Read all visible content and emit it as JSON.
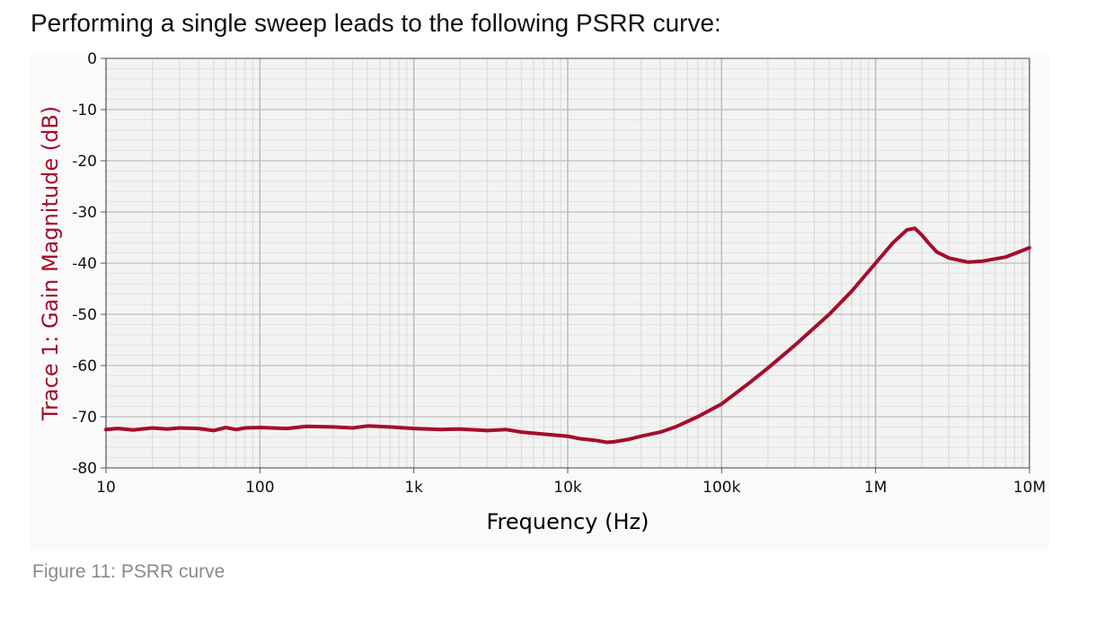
{
  "intro_text": "Performing a single sweep leads to the following PSRR curve:",
  "caption": "Figure 11: PSRR curve",
  "colors": {
    "trace": "#a50d2b",
    "plot_bg": "#f3f3f3",
    "grid_major": "#bdbdbd",
    "grid_minor": "#dcdcdc"
  },
  "chart_data": {
    "type": "line",
    "title": "",
    "xlabel": "Frequency (Hz)",
    "ylabel": "Trace 1: Gain Magnitude (dB)",
    "x_scale": "log",
    "xlim": [
      10,
      10000000
    ],
    "ylim": [
      -80,
      0
    ],
    "x_ticks": [
      10,
      100,
      1000,
      10000,
      100000,
      1000000,
      10000000
    ],
    "x_tick_labels": [
      "10",
      "100",
      "1k",
      "10k",
      "100k",
      "1M",
      "10M"
    ],
    "y_ticks": [
      0,
      -10,
      -20,
      -30,
      -40,
      -50,
      -60,
      -70,
      -80
    ],
    "y_tick_labels": [
      "0",
      "-10",
      "-20",
      "-30",
      "-40",
      "-50",
      "-60",
      "-70",
      "-80"
    ],
    "grid": true,
    "series": [
      {
        "x": [
          10,
          12,
          15,
          20,
          25,
          30,
          40,
          50,
          60,
          70,
          80,
          100,
          150,
          200,
          300,
          400,
          500,
          700,
          1000,
          1500,
          2000,
          3000,
          4000,
          5000,
          7000,
          10000,
          12000,
          15000,
          18000,
          20000,
          25000,
          30000,
          40000,
          50000,
          70000,
          100000,
          150000,
          200000,
          300000,
          500000,
          700000,
          1000000,
          1300000,
          1600000,
          1800000,
          2000000,
          2200000,
          2500000,
          3000000,
          4000000,
          5000000,
          7000000,
          10000000
        ],
        "y": [
          -72.5,
          -72.3,
          -72.6,
          -72.2,
          -72.4,
          -72.2,
          -72.3,
          -72.7,
          -72.1,
          -72.5,
          -72.2,
          -72.1,
          -72.3,
          -71.9,
          -72.0,
          -72.2,
          -71.8,
          -72.0,
          -72.3,
          -72.5,
          -72.4,
          -72.7,
          -72.5,
          -73.0,
          -73.4,
          -73.8,
          -74.3,
          -74.6,
          -75.0,
          -74.9,
          -74.4,
          -73.8,
          -73.0,
          -72.0,
          -70.0,
          -67.5,
          -63.5,
          -60.5,
          -56.0,
          -50.0,
          -45.5,
          -40.0,
          -36.0,
          -33.5,
          -33.2,
          -34.5,
          -36.0,
          -37.8,
          -39.0,
          -39.8,
          -39.6,
          -38.8,
          -37.0
        ],
        "color": "#a50d2b"
      }
    ]
  }
}
